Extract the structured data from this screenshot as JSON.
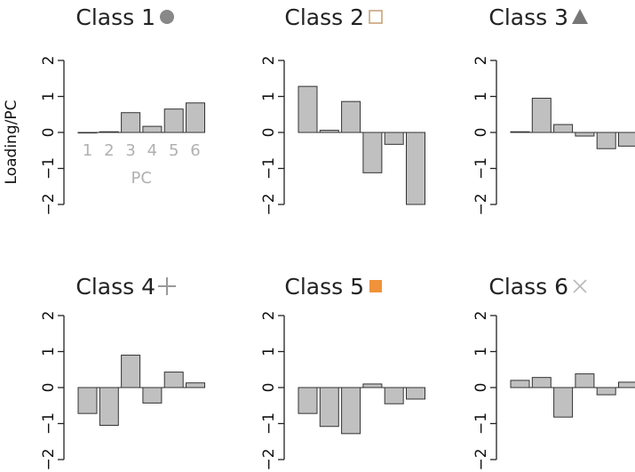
{
  "chart_data": {
    "type": "bar",
    "ylabel": "Loading/PC",
    "xlabel": "PC",
    "categories": [
      "1",
      "2",
      "3",
      "4",
      "5",
      "6"
    ],
    "ylim": [
      -2,
      2
    ],
    "yticks": [
      -2,
      -1,
      0,
      1,
      2
    ],
    "ytick_labels": [
      "−2",
      "−1",
      "0",
      "1",
      "2"
    ],
    "bar_color": "#c0c0c0",
    "grid": false,
    "panels": [
      {
        "title": "Class 1",
        "marker": "circle",
        "marker_color": "#888888",
        "values": [
          0.0,
          0.02,
          0.55,
          0.17,
          0.65,
          0.82
        ]
      },
      {
        "title": "Class 2",
        "marker": "open-square",
        "marker_color": "#c8a47a",
        "values": [
          1.28,
          0.06,
          0.86,
          -1.12,
          -0.33,
          -2.0
        ]
      },
      {
        "title": "Class 3",
        "marker": "triangle",
        "marker_color": "#777777",
        "values": [
          0.02,
          0.95,
          0.22,
          -0.1,
          -0.45,
          -0.38
        ]
      },
      {
        "title": "Class 4",
        "marker": "plus",
        "marker_color": "#999999",
        "values": [
          -0.72,
          -1.05,
          0.9,
          -0.43,
          0.43,
          0.13
        ]
      },
      {
        "title": "Class 5",
        "marker": "filled-square",
        "marker_color": "#f0923a",
        "values": [
          -0.72,
          -1.08,
          -1.28,
          0.1,
          -0.45,
          -0.32
        ]
      },
      {
        "title": "Class 6",
        "marker": "cross",
        "marker_color": "#bbbbbb",
        "values": [
          0.2,
          0.28,
          -0.82,
          0.38,
          -0.2,
          0.15
        ]
      }
    ]
  }
}
